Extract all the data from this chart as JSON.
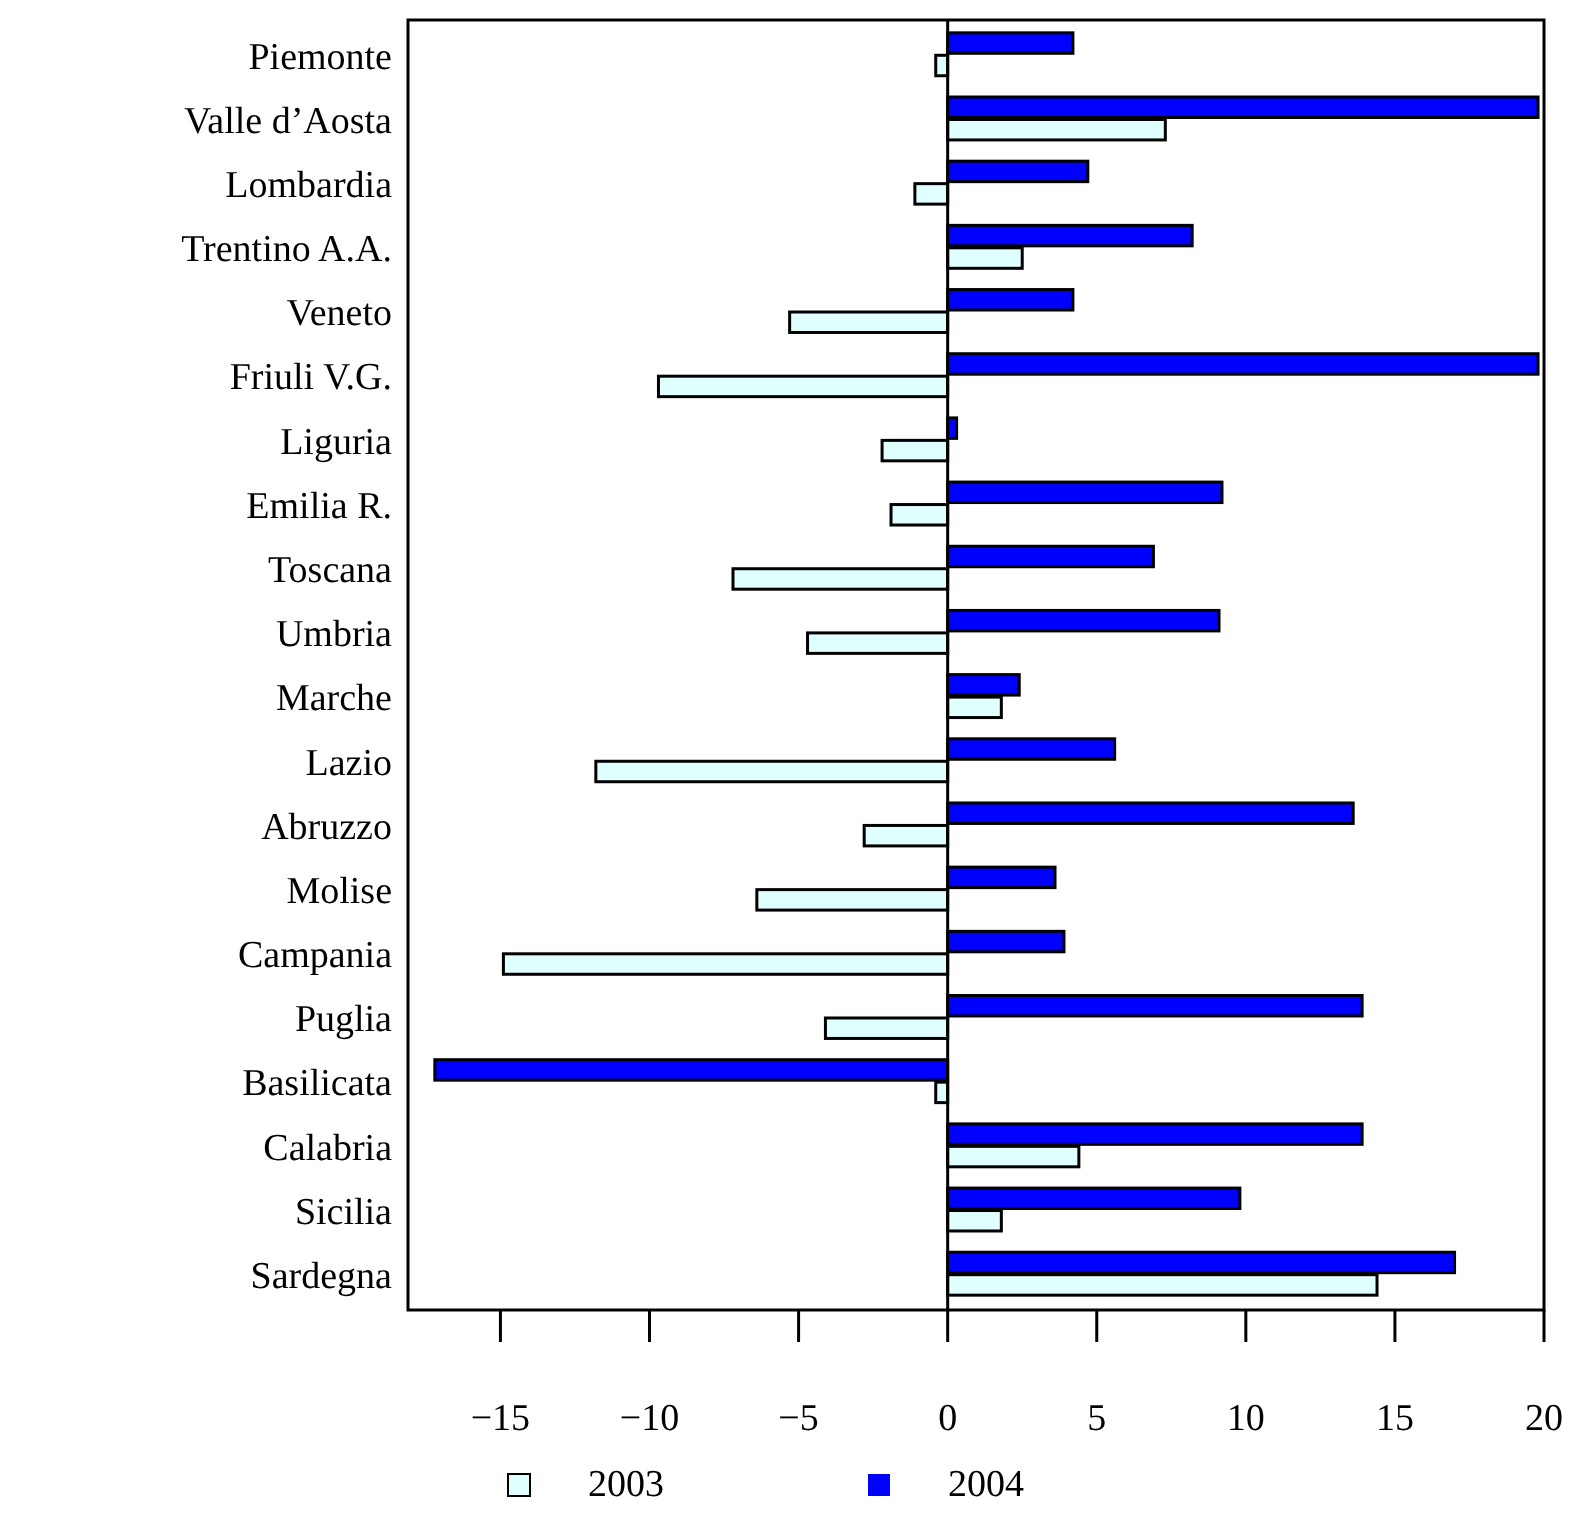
{
  "chart_data": {
    "type": "bar",
    "orientation": "horizontal",
    "categories": [
      "Piemonte",
      "Valle d’Aosta",
      "Lombardia",
      "Trentino A.A.",
      "Veneto",
      "Friuli V.G.",
      "Liguria",
      "Emilia R.",
      "Toscana",
      "Umbria",
      "Marche",
      "Lazio",
      "Abruzzo",
      "Molise",
      "Campania",
      "Puglia",
      "Basilicata",
      "Calabria",
      "Sicilia",
      "Sardegna"
    ],
    "series": [
      {
        "name": "2003",
        "color": "#e0ffff",
        "values": [
          -0.4,
          7.3,
          -1.1,
          2.5,
          -5.3,
          -9.7,
          -2.2,
          -1.9,
          -7.2,
          -4.7,
          1.8,
          -11.8,
          -2.8,
          -6.4,
          -14.9,
          -4.1,
          -0.4,
          4.4,
          1.8,
          14.4
        ]
      },
      {
        "name": "2004",
        "color": "#0000ff",
        "values": [
          4.2,
          19.8,
          4.7,
          8.2,
          4.2,
          19.8,
          0.3,
          9.2,
          6.9,
          9.1,
          2.4,
          5.6,
          13.6,
          3.6,
          3.9,
          13.9,
          -17.2,
          13.9,
          9.8,
          17.0
        ]
      }
    ],
    "xlim": [
      -18.1,
      20
    ],
    "xticks": [
      {
        "value": -15,
        "label": "−15"
      },
      {
        "value": -10,
        "label": "−10"
      },
      {
        "value": -5,
        "label": "−5"
      },
      0,
      5,
      10,
      15,
      20
    ],
    "legend": "bottom"
  }
}
